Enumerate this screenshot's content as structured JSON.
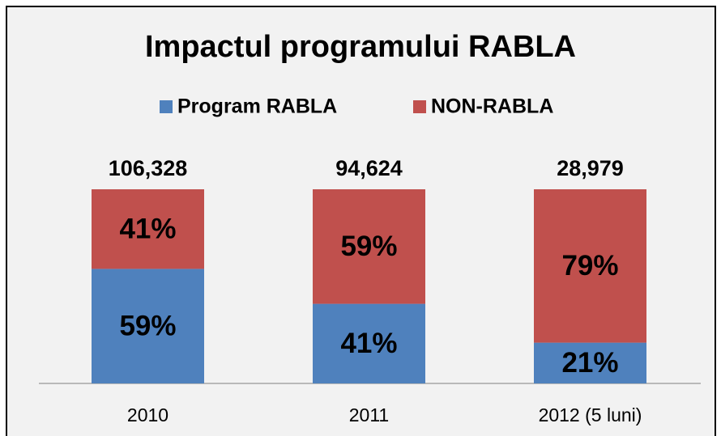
{
  "chart_data": {
    "type": "stacked-bar-percent",
    "title": "Impactul programului RABLA",
    "categories": [
      "2010",
      "2011",
      "2012 (5 luni)"
    ],
    "series": [
      {
        "name": "Program RABLA",
        "color": "#4f81bd",
        "values": [
          59,
          41,
          21
        ],
        "value_labels": [
          "59%",
          "41%",
          "21%"
        ]
      },
      {
        "name": "NON-RABLA",
        "color": "#c0504d",
        "values": [
          41,
          59,
          79
        ],
        "value_labels": [
          "41%",
          "59%",
          "79%"
        ]
      }
    ],
    "totals": {
      "values": [
        106328,
        94624,
        28979
      ],
      "value_labels": [
        "106,328",
        "94,624",
        "28,979"
      ]
    },
    "ylim": [
      0,
      100
    ],
    "legend": "top"
  }
}
